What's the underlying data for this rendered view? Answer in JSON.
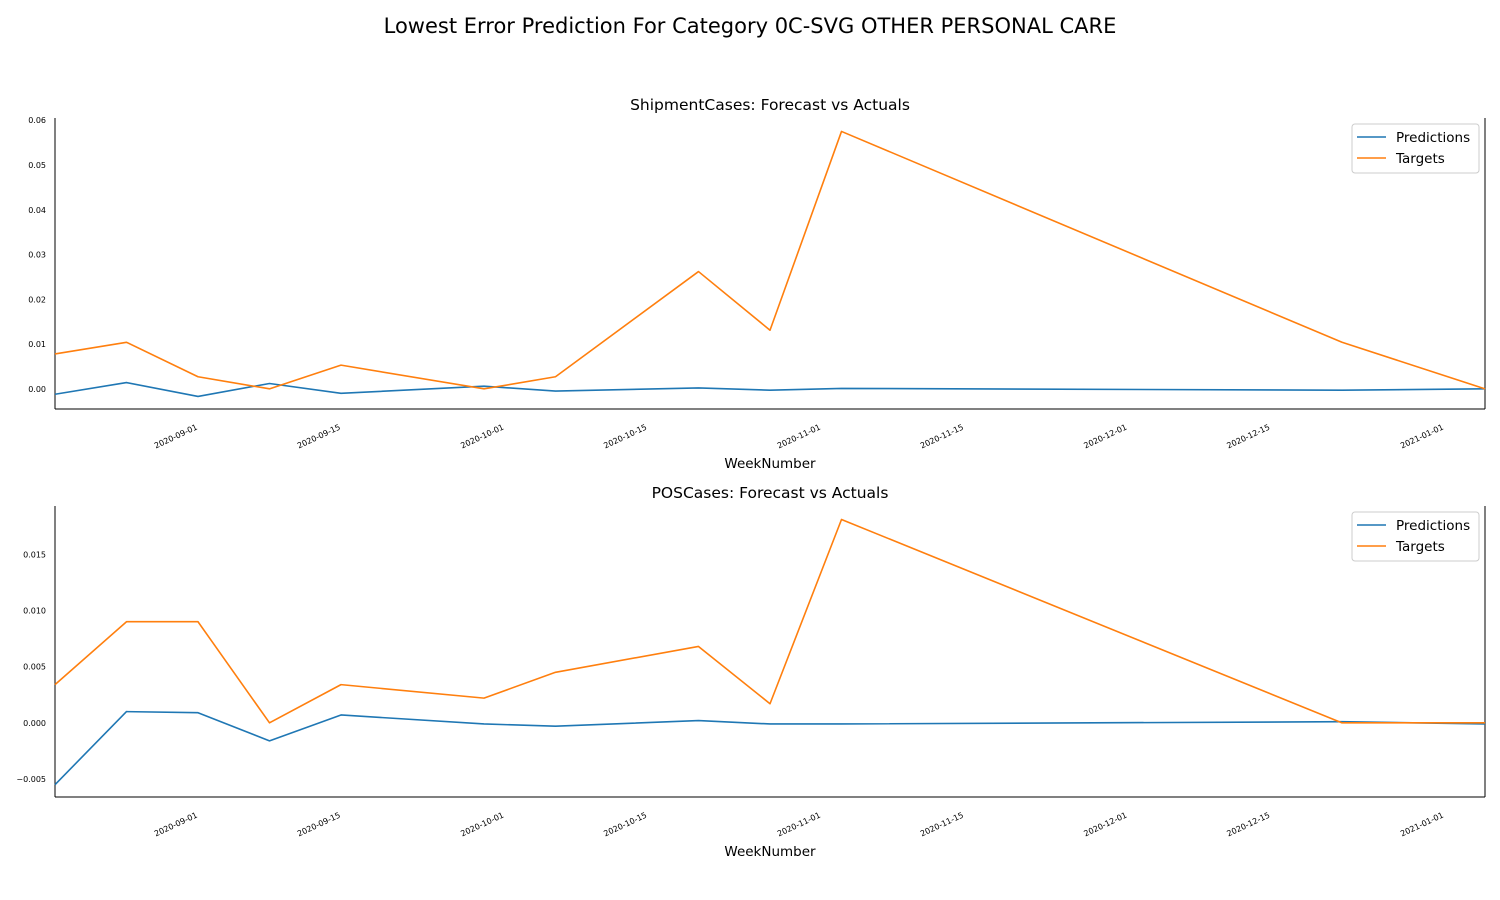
{
  "figure_title": "Lowest Error Prediction For Category 0C-SVG OTHER PERSONAL CARE",
  "colors": {
    "predictions": "#1f77b4",
    "targets": "#ff7f0e"
  },
  "chart_data": [
    {
      "type": "line",
      "title": "ShipmentCases: Forecast vs Actuals",
      "xlabel": "WeekNumber",
      "ylabel": "",
      "x": [
        "2020-08-18",
        "2020-08-25",
        "2020-09-01",
        "2020-09-08",
        "2020-09-15",
        "2020-09-29",
        "2020-10-06",
        "2020-10-20",
        "2020-10-27",
        "2020-11-03",
        "2020-12-22",
        "2021-01-05"
      ],
      "xlim": [
        "2020-08-18",
        "2021-01-05"
      ],
      "xticks": [
        "2020-09-01",
        "2020-09-15",
        "2020-10-01",
        "2020-10-15",
        "2020-11-01",
        "2020-11-15",
        "2020-12-01",
        "2020-12-15",
        "2021-01-01"
      ],
      "ylim": [
        -0.0045,
        0.0605
      ],
      "yticks": [
        "0.00",
        "0.01",
        "0.02",
        "0.03",
        "0.04",
        "0.05",
        "0.06"
      ],
      "grid": false,
      "legend": "upper right",
      "series": [
        {
          "name": "Predictions",
          "color": "#1f77b4",
          "values": [
            -0.0012,
            0.0014,
            -0.0017,
            0.0012,
            -0.001,
            0.0006,
            -0.0005,
            0.0002,
            -0.0003,
            0.0001,
            -0.0003,
            0.0
          ]
        },
        {
          "name": "Targets",
          "color": "#ff7f0e",
          "values": [
            0.0078,
            0.0104,
            0.0027,
            0.0,
            0.0053,
            0.0,
            0.0027,
            0.0262,
            0.0131,
            0.0575,
            0.0104,
            0.0
          ]
        }
      ]
    },
    {
      "type": "line",
      "title": "POSCases: Forecast vs Actuals",
      "xlabel": "WeekNumber",
      "ylabel": "",
      "x": [
        "2020-08-18",
        "2020-08-25",
        "2020-09-01",
        "2020-09-08",
        "2020-09-15",
        "2020-09-29",
        "2020-10-06",
        "2020-10-20",
        "2020-10-27",
        "2020-11-03",
        "2020-12-22",
        "2021-01-05"
      ],
      "xlim": [
        "2020-08-18",
        "2021-01-05"
      ],
      "xticks": [
        "2020-09-01",
        "2020-09-15",
        "2020-10-01",
        "2020-10-15",
        "2020-11-01",
        "2020-11-15",
        "2020-12-01",
        "2020-12-15",
        "2021-01-01"
      ],
      "ylim": [
        -0.0066,
        0.0193
      ],
      "yticks": [
        "−0.005",
        "0.000",
        "0.005",
        "0.010",
        "0.015"
      ],
      "grid": false,
      "legend": "upper right",
      "series": [
        {
          "name": "Predictions",
          "color": "#1f77b4",
          "values": [
            -0.0055,
            0.001,
            0.0009,
            -0.0016,
            0.0007,
            -0.0001,
            -0.0003,
            0.0002,
            -0.0001,
            -0.0001,
            0.0001,
            -0.0001
          ]
        },
        {
          "name": "Targets",
          "color": "#ff7f0e",
          "values": [
            0.0034,
            0.009,
            0.009,
            0.0,
            0.0034,
            0.0022,
            0.0045,
            0.0068,
            0.0017,
            0.0181,
            0.0,
            0.0
          ]
        }
      ]
    }
  ]
}
